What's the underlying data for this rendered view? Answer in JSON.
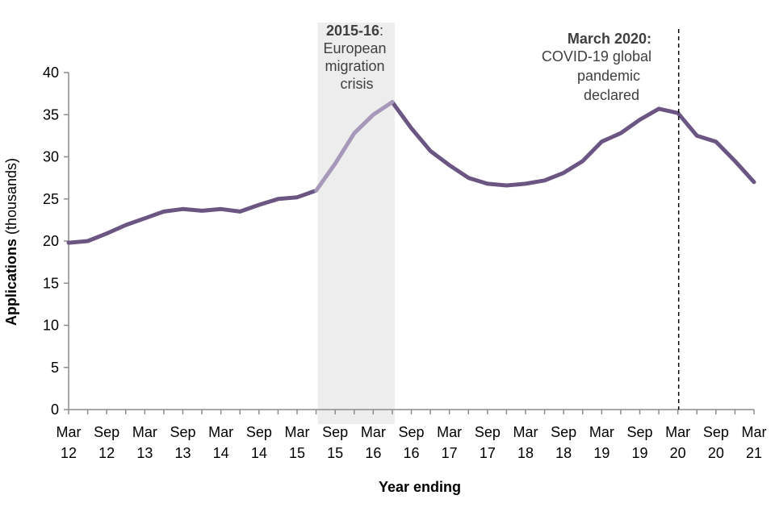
{
  "chart_data": {
    "type": "line",
    "title": "",
    "xlabel": "Year ending",
    "ylabel": "Applications (thousands)",
    "ylabel_bold": "Applications",
    "ylabel_rest": " (thousands)",
    "ylim": [
      0,
      40
    ],
    "yticks": [
      0,
      5,
      10,
      15,
      20,
      25,
      30,
      35,
      40
    ],
    "grid": false,
    "legend": "none",
    "x": [
      "Mar 12",
      "Jun 12",
      "Sep 12",
      "Dec 12",
      "Mar 13",
      "Jun 13",
      "Sep 13",
      "Dec 13",
      "Mar 14",
      "Jun 14",
      "Sep 14",
      "Dec 14",
      "Mar 15",
      "Jun 15",
      "Sep 15",
      "Dec 15",
      "Mar 16",
      "Jun 16",
      "Sep 16",
      "Dec 16",
      "Mar 17",
      "Jun 17",
      "Sep 17",
      "Dec 17",
      "Mar 18",
      "Jun 18",
      "Sep 18",
      "Dec 18",
      "Mar 19",
      "Jun 19",
      "Sep 19",
      "Dec 19",
      "Mar 20",
      "Jun 20",
      "Sep 20",
      "Dec 20",
      "Mar 21"
    ],
    "xtick_labels": [
      {
        "top": "Mar",
        "bottom": "12"
      },
      {
        "top": "Sep",
        "bottom": "12"
      },
      {
        "top": "Mar",
        "bottom": "13"
      },
      {
        "top": "Sep",
        "bottom": "13"
      },
      {
        "top": "Mar",
        "bottom": "14"
      },
      {
        "top": "Sep",
        "bottom": "14"
      },
      {
        "top": "Mar",
        "bottom": "15"
      },
      {
        "top": "Sep",
        "bottom": "15"
      },
      {
        "top": "Mar",
        "bottom": "16"
      },
      {
        "top": "Sep",
        "bottom": "16"
      },
      {
        "top": "Mar",
        "bottom": "17"
      },
      {
        "top": "Sep",
        "bottom": "17"
      },
      {
        "top": "Mar",
        "bottom": "18"
      },
      {
        "top": "Sep",
        "bottom": "18"
      },
      {
        "top": "Mar",
        "bottom": "19"
      },
      {
        "top": "Sep",
        "bottom": "19"
      },
      {
        "top": "Mar",
        "bottom": "20"
      },
      {
        "top": "Sep",
        "bottom": "20"
      },
      {
        "top": "Mar",
        "bottom": "21"
      }
    ],
    "series": [
      {
        "values": [
          19.8,
          20.0,
          20.9,
          21.9,
          22.7,
          23.5,
          23.8,
          23.6,
          23.8,
          23.5,
          24.3,
          25.0,
          25.2,
          26.0,
          29.2,
          32.8,
          35.0,
          36.5,
          33.4,
          30.7,
          29.0,
          27.5,
          26.8,
          26.6,
          26.8,
          27.2,
          28.1,
          29.5,
          31.8,
          32.8,
          34.4,
          35.7,
          35.2,
          32.5,
          31.8,
          29.5,
          27.0
        ],
        "color": "#6b5683",
        "highlight_color": "#a797b8"
      }
    ],
    "annotations": {
      "shaded_region": {
        "x_start": "Jun 15",
        "x_end": "Jun 16",
        "color": "#ededed",
        "label_bold": "2015-16",
        "label_rest": ":",
        "label_lines": [
          "European",
          "migration",
          "crisis"
        ]
      },
      "event_line": {
        "x": "Mar 20",
        "style": "dashed",
        "label_bold": "March 2020:",
        "label_lines": [
          "COVID-19 global",
          "pandemic",
          "declared"
        ]
      }
    }
  }
}
